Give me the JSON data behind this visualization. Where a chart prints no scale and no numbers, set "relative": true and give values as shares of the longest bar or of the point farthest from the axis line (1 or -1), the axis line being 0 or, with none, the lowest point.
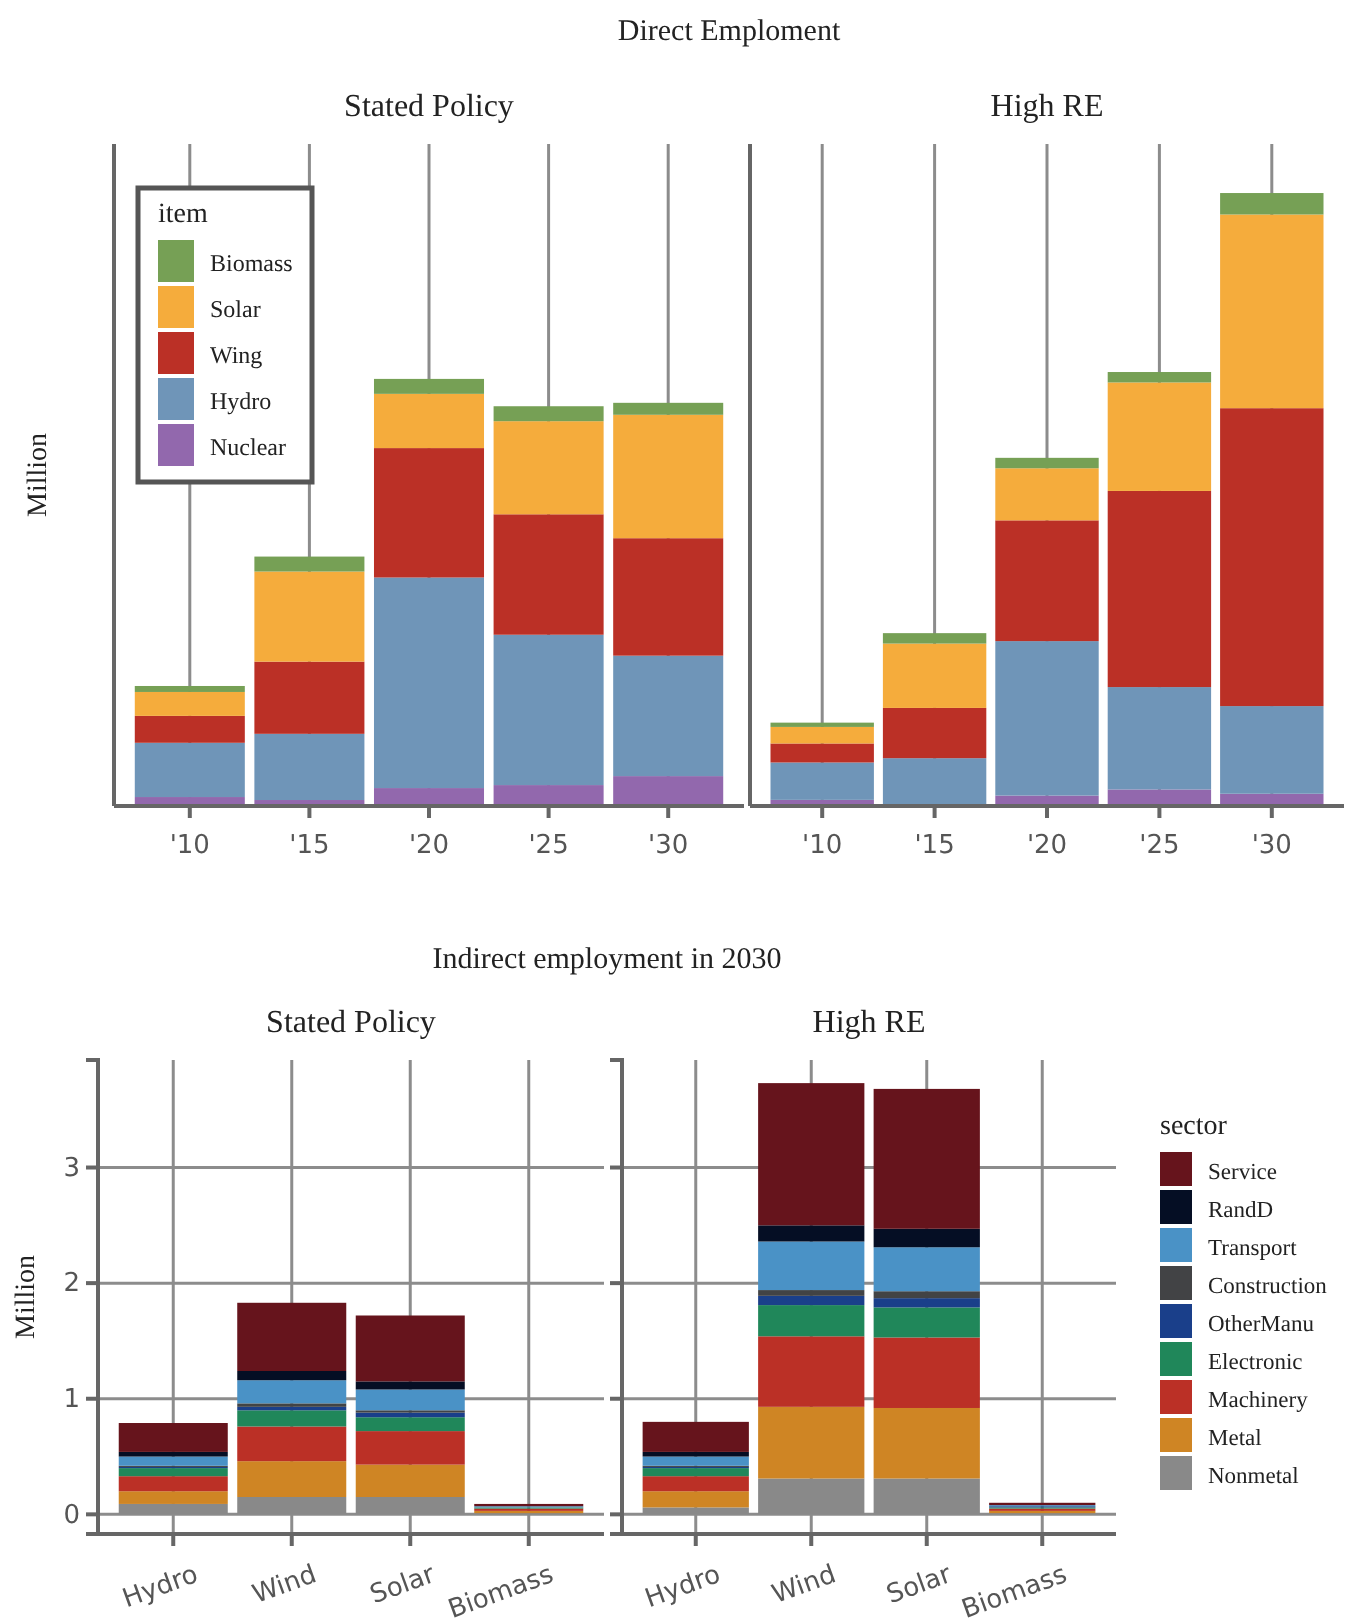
{
  "chart_data": [
    {
      "type": "bar",
      "title": "Direct Emploment",
      "subtitle": "Stated Policy",
      "ylabel": "Million",
      "categories": [
        "'10",
        "'15",
        "'20",
        "'25",
        "'30"
      ],
      "stacked": true,
      "relative": true,
      "grid": "x",
      "legend": "top left",
      "legend_title": "item",
      "series": [
        {
          "name": "Nuclear",
          "color": "#9268ad",
          "values": [
            0.021,
            0.014,
            0.042,
            0.049,
            0.07
          ]
        },
        {
          "name": "Hydro",
          "color": "#6f95b8",
          "values": [
            0.127,
            0.155,
            0.493,
            0.352,
            0.282
          ]
        },
        {
          "name": "Wing",
          "color": "#bb3026",
          "values": [
            0.063,
            0.169,
            0.303,
            0.282,
            0.275
          ]
        },
        {
          "name": "Solar",
          "color": "#f5ac3c",
          "values": [
            0.056,
            0.211,
            0.127,
            0.218,
            0.289
          ]
        },
        {
          "name": "Biomass",
          "color": "#76a055",
          "values": [
            0.014,
            0.035,
            0.035,
            0.035,
            0.028
          ]
        }
      ]
    },
    {
      "type": "bar",
      "title": "High RE",
      "categories": [
        "'10",
        "'15",
        "'20",
        "'25",
        "'30"
      ],
      "stacked": true,
      "relative": true,
      "grid": "x",
      "series": [
        {
          "color": "#9268ad",
          "values": [
            0.01,
            0.003,
            0.017,
            0.027,
            0.02
          ]
        },
        {
          "color": "#6f95b8",
          "values": [
            0.061,
            0.075,
            0.252,
            0.167,
            0.143
          ]
        },
        {
          "color": "#bb3026",
          "values": [
            0.031,
            0.082,
            0.197,
            0.32,
            0.486
          ]
        },
        {
          "color": "#f5ac3c",
          "values": [
            0.027,
            0.105,
            0.085,
            0.177,
            0.316
          ]
        },
        {
          "color": "#76a055",
          "values": [
            0.007,
            0.017,
            0.017,
            0.017,
            0.035
          ]
        }
      ]
    },
    {
      "type": "bar",
      "title": "Indirect employment in 2030",
      "subtitle": "Stated Policy",
      "ylabel": "Million",
      "categories": [
        "Hydro",
        "Wind",
        "Solar",
        "Biomass"
      ],
      "stacked": true,
      "grid": true,
      "ylim": [
        -0.17,
        3.93
      ],
      "yticks": [
        0,
        1,
        2,
        3
      ],
      "series": [
        {
          "color": "#898989",
          "values": [
            0.09,
            0.15,
            0.15,
            0.01
          ]
        },
        {
          "color": "#cf8524",
          "values": [
            0.11,
            0.31,
            0.28,
            0.02
          ]
        },
        {
          "color": "#bb3026",
          "values": [
            0.13,
            0.3,
            0.29,
            0.02
          ]
        },
        {
          "color": "#20875a",
          "values": [
            0.07,
            0.14,
            0.12,
            0.01
          ]
        },
        {
          "color": "#1a3f8a",
          "values": [
            0.01,
            0.03,
            0.04,
            0
          ]
        },
        {
          "color": "#424345",
          "values": [
            0.01,
            0.03,
            0.02,
            0
          ]
        },
        {
          "color": "#4a92c6",
          "values": [
            0.08,
            0.2,
            0.18,
            0.01
          ]
        },
        {
          "color": "#050e24",
          "values": [
            0.04,
            0.08,
            0.07,
            0
          ]
        },
        {
          "color": "#66141c",
          "values": [
            0.25,
            0.59,
            0.57,
            0.02
          ]
        }
      ]
    },
    {
      "type": "bar",
      "title": "High RE",
      "categories": [
        "Hydro",
        "Wind",
        "Solar",
        "Biomass"
      ],
      "stacked": true,
      "grid": true,
      "ylim": [
        -0.17,
        3.93
      ],
      "yticks": [
        0,
        1,
        2,
        3
      ],
      "tick_labels": "x",
      "legend": "right",
      "legend_title": "sector",
      "series": [
        {
          "name": "Nonmetal",
          "color": "#898989",
          "values": [
            0.06,
            0.31,
            0.31,
            0.01
          ]
        },
        {
          "name": "Metal",
          "color": "#cf8524",
          "values": [
            0.14,
            0.62,
            0.61,
            0.02
          ]
        },
        {
          "name": "Machinery",
          "color": "#bb3026",
          "values": [
            0.13,
            0.61,
            0.61,
            0.02
          ]
        },
        {
          "name": "Electronic",
          "color": "#20875a",
          "values": [
            0.07,
            0.27,
            0.26,
            0.01
          ]
        },
        {
          "name": "OtherManu",
          "color": "#1a3f8a",
          "values": [
            0.01,
            0.08,
            0.08,
            0.01
          ]
        },
        {
          "name": "Construction",
          "color": "#424345",
          "values": [
            0.01,
            0.05,
            0.06,
            0
          ]
        },
        {
          "name": "Transport",
          "color": "#4a92c6",
          "values": [
            0.08,
            0.42,
            0.38,
            0.01
          ]
        },
        {
          "name": "RandD",
          "color": "#050e24",
          "values": [
            0.04,
            0.14,
            0.16,
            0
          ]
        },
        {
          "name": "Service",
          "color": "#66141c",
          "values": [
            0.26,
            1.23,
            1.21,
            0.02
          ]
        }
      ]
    }
  ]
}
